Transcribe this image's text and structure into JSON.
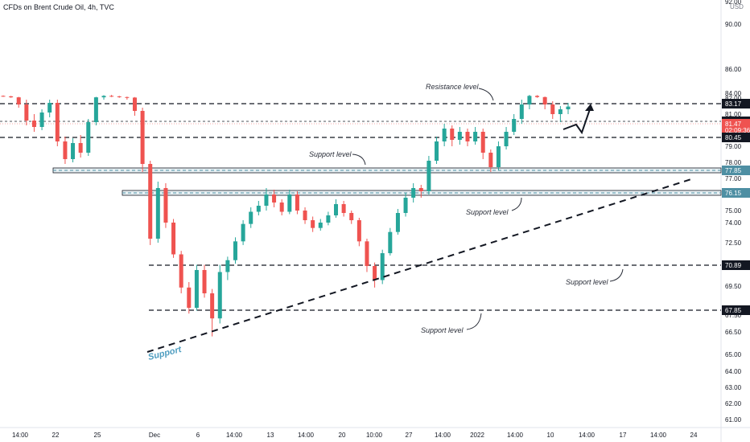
{
  "header": {
    "title": "CFDs on Brent Crude Oil, 4h, TVC",
    "currency": "USD"
  },
  "chart_data": {
    "type": "candlestick",
    "title": "CFDs on Brent Crude Oil, 4h, TVC",
    "currency": "USD",
    "y_ticks": [
      "61.00",
      "62.00",
      "63.00",
      "64.00",
      "65.00",
      "66.50",
      "67.50",
      "69.50",
      "70.50",
      "72.50",
      "74.00",
      "75.00",
      "76.00",
      "77.00",
      "78.00",
      "79.00",
      "80.00",
      "81.00",
      "82.00",
      "84.00",
      "86.00",
      "90.00",
      "92.00"
    ],
    "ylim": [
      61,
      92
    ],
    "x_ticks": [
      "14:00",
      "22",
      "25",
      "Dec",
      "6",
      "14:00",
      "13",
      "14:00",
      "20",
      "10:00",
      "27",
      "14:00",
      "2022",
      "14:00",
      "10",
      "14:00",
      "17",
      "14:00",
      "24"
    ],
    "levels": [
      {
        "value": 83.17,
        "label": "83.17",
        "style": "dashed",
        "color": "#131722"
      },
      {
        "value": 81.69,
        "label": "81.69",
        "style": "dashed-thin",
        "color": "#131722"
      },
      {
        "value": 81.47,
        "label": "81.47",
        "style": "current",
        "color": "#ef5350",
        "sublabel": "02:09:36"
      },
      {
        "value": 80.45,
        "label": "80.45",
        "style": "dashed",
        "color": "#131722"
      },
      {
        "value": 77.85,
        "label": "77.85",
        "style": "band",
        "color": "#4e8fa3"
      },
      {
        "value": 76.15,
        "label": "76.15",
        "style": "band",
        "color": "#4e8fa3"
      },
      {
        "value": 70.89,
        "label": "70.89",
        "style": "dashed",
        "color": "#131722"
      },
      {
        "value": 67.85,
        "label": "67.85",
        "style": "dashed",
        "color": "#131722"
      }
    ],
    "annotations": [
      {
        "text": "Resistance level"
      },
      {
        "text": "Support level"
      },
      {
        "text": "Support level"
      },
      {
        "text": "Support level"
      },
      {
        "text": "Support level"
      },
      {
        "text": "Support"
      }
    ],
    "series": [
      {
        "values": [
          [
            82.9,
            83.1,
            82.5,
            82.7
          ],
          [
            82.7,
            82.9,
            82.1,
            82.3
          ],
          [
            82.3,
            82.5,
            81.4,
            81.6
          ],
          [
            81.6,
            81.9,
            80.3,
            80.6
          ],
          [
            80.6,
            81.0,
            79.9,
            80.2
          ],
          [
            80.2,
            81.3,
            80.0,
            81.1
          ],
          [
            81.1,
            81.9,
            80.8,
            81.7
          ],
          [
            81.7,
            81.9,
            79.0,
            79.3
          ],
          [
            79.3,
            79.6,
            77.9,
            78.2
          ],
          [
            78.2,
            79.5,
            78.0,
            79.2
          ],
          [
            79.2,
            79.7,
            78.3,
            78.6
          ],
          [
            78.6,
            80.7,
            78.4,
            80.5
          ],
          [
            80.5,
            82.5,
            80.3,
            82.3
          ],
          [
            82.3,
            83.2,
            81.9,
            82.9
          ],
          [
            82.9,
            83.3,
            82.4,
            82.7
          ],
          [
            82.7,
            82.9,
            82.1,
            82.4
          ],
          [
            82.4,
            82.6,
            81.9,
            82.2
          ],
          [
            82.2,
            82.4,
            80.9,
            81.2
          ],
          [
            81.2,
            81.4,
            77.4,
            77.9
          ],
          [
            77.9,
            78.1,
            72.3,
            72.8
          ],
          [
            72.8,
            76.8,
            72.5,
            76.4
          ],
          [
            76.4,
            76.7,
            73.6,
            74.0
          ],
          [
            74.0,
            74.3,
            71.2,
            71.5
          ],
          [
            71.5,
            71.8,
            69.0,
            69.4
          ],
          [
            69.4,
            69.7,
            67.6,
            68.0
          ],
          [
            68.0,
            70.6,
            67.8,
            70.3
          ],
          [
            70.3,
            70.6,
            68.7,
            69.0
          ],
          [
            69.0,
            69.3,
            66.2,
            67.3
          ],
          [
            67.3,
            70.6,
            67.0,
            70.2
          ],
          [
            70.2,
            71.3,
            69.8,
            71.0
          ],
          [
            71.0,
            72.9,
            70.7,
            72.6
          ],
          [
            72.6,
            74.2,
            72.3,
            73.9
          ],
          [
            73.9,
            75.2,
            73.6,
            74.9
          ],
          [
            74.9,
            75.6,
            74.6,
            75.3
          ],
          [
            75.3,
            76.4,
            75.0,
            76.0
          ],
          [
            76.0,
            76.3,
            75.2,
            75.5
          ],
          [
            75.5,
            75.7,
            74.6,
            74.9
          ],
          [
            74.9,
            76.3,
            74.7,
            76.0
          ],
          [
            76.0,
            76.2,
            74.7,
            75.0
          ],
          [
            75.0,
            75.2,
            73.9,
            74.2
          ],
          [
            74.2,
            74.5,
            73.3,
            73.6
          ],
          [
            73.6,
            74.3,
            73.4,
            74.0
          ],
          [
            74.0,
            74.9,
            73.8,
            74.6
          ],
          [
            74.6,
            75.7,
            74.4,
            75.4
          ],
          [
            75.4,
            75.6,
            74.5,
            74.8
          ],
          [
            74.8,
            75.0,
            73.9,
            74.2
          ],
          [
            74.2,
            74.4,
            72.2,
            72.6
          ],
          [
            72.6,
            72.8,
            70.2,
            70.5
          ],
          [
            70.5,
            70.8,
            69.4,
            69.8
          ],
          [
            69.8,
            71.9,
            69.6,
            71.6
          ],
          [
            71.6,
            73.6,
            71.4,
            73.3
          ],
          [
            73.3,
            75.1,
            73.1,
            74.8
          ],
          [
            74.8,
            76.1,
            74.5,
            75.8
          ],
          [
            75.8,
            76.7,
            75.5,
            76.4
          ],
          [
            76.4,
            76.6,
            75.8,
            76.2
          ],
          [
            76.2,
            78.4,
            76.0,
            78.1
          ],
          [
            78.1,
            79.6,
            77.9,
            79.3
          ],
          [
            79.3,
            80.4,
            79.0,
            80.1
          ],
          [
            80.1,
            80.3,
            79.0,
            79.4
          ],
          [
            79.4,
            80.2,
            79.1,
            79.9
          ],
          [
            79.9,
            80.1,
            79.0,
            79.3
          ],
          [
            79.3,
            80.2,
            79.1,
            79.9
          ],
          [
            79.9,
            80.1,
            78.2,
            78.6
          ],
          [
            78.6,
            78.8,
            77.4,
            77.7
          ],
          [
            77.7,
            79.3,
            77.5,
            79.0
          ],
          [
            79.0,
            80.2,
            78.8,
            79.9
          ],
          [
            79.9,
            81.0,
            79.7,
            80.7
          ],
          [
            80.7,
            81.9,
            80.4,
            81.6
          ],
          [
            81.6,
            83.3,
            81.3,
            82.9
          ],
          [
            82.9,
            83.2,
            82.1,
            82.4
          ],
          [
            82.4,
            82.6,
            81.3,
            81.6
          ],
          [
            81.6,
            81.8,
            80.7,
            81.0
          ],
          [
            81.0,
            81.5,
            80.5,
            81.3
          ],
          [
            81.3,
            81.7,
            81.0,
            81.47
          ]
        ]
      }
    ]
  }
}
